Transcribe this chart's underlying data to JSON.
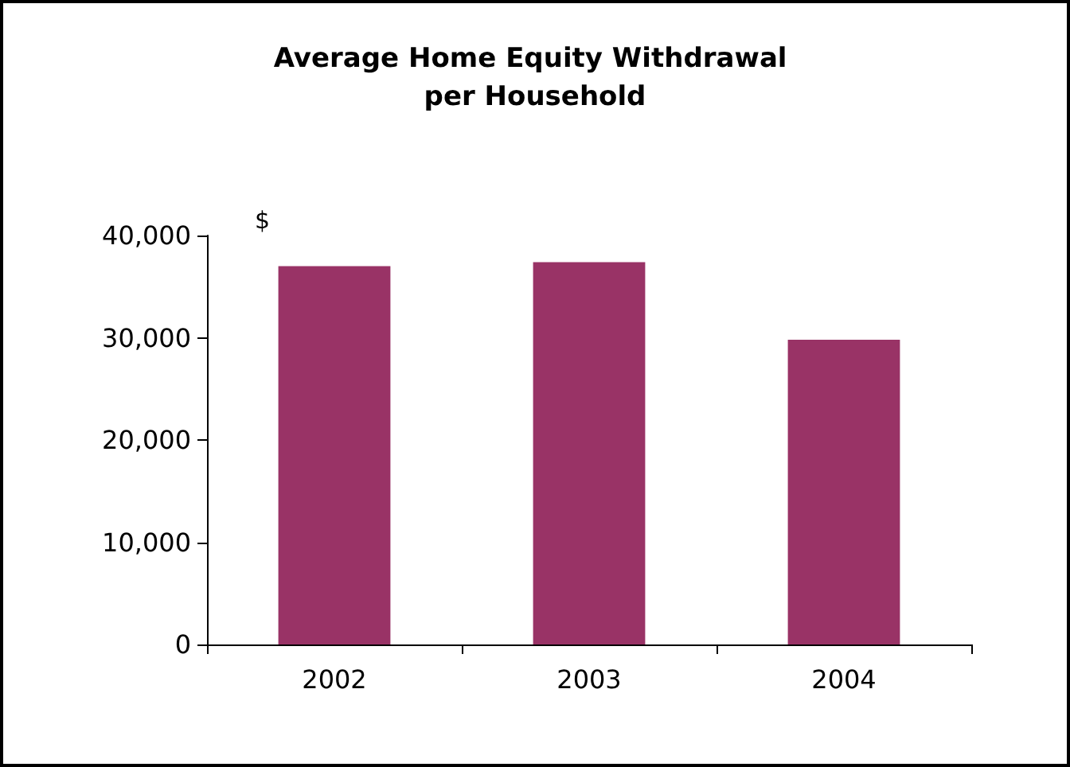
{
  "chart_data": {
    "type": "bar",
    "title": "Average Home Equity Withdrawal per Household",
    "ylabel": "$",
    "categories": [
      "2002",
      "2003",
      "2004"
    ],
    "values": [
      37000,
      37400,
      29800
    ],
    "color": "#993366",
    "ylim": [
      0,
      40000
    ],
    "yticks": [
      0,
      {
        "value": 10000,
        "label": "10,000"
      },
      {
        "value": 20000,
        "label": "20,000"
      },
      {
        "value": 30000,
        "label": "30,000"
      },
      {
        "value": 40000,
        "label": "40,000"
      }
    ],
    "grid": false
  }
}
